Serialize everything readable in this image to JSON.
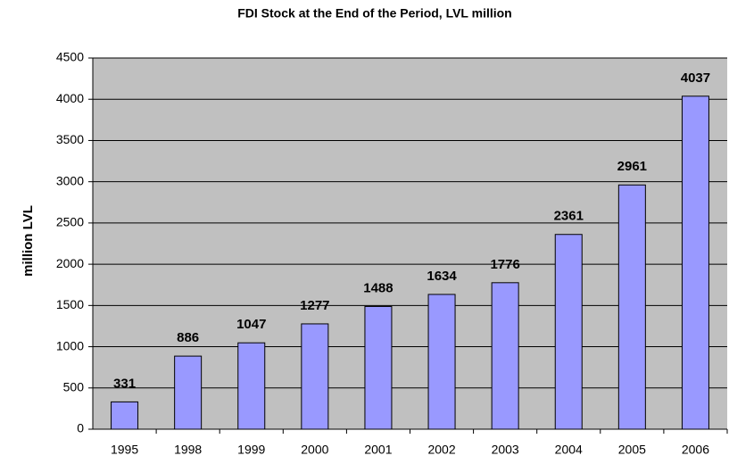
{
  "chart_data": {
    "type": "bar",
    "title": "FDI Stock at the End of the Period, LVL million",
    "y_label": "million LVL",
    "categories": [
      "1995",
      "1998",
      "1999",
      "2000",
      "2001",
      "2002",
      "2003",
      "2004",
      "2005",
      "2006"
    ],
    "values": [
      331,
      886,
      1047,
      1277,
      1488,
      1634,
      1776,
      2361,
      2961,
      4037
    ],
    "color": "#9999ff",
    "ylim": [
      0,
      4500
    ],
    "yticks": [
      0,
      500,
      1000,
      1500,
      2000,
      2500,
      3000,
      3500,
      4000,
      4500
    ],
    "grid": true
  }
}
